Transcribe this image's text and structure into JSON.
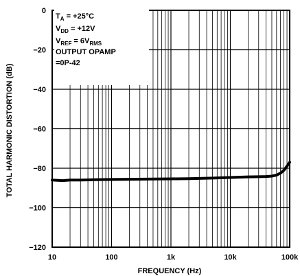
{
  "chart_data": {
    "type": "line",
    "xlabel": "FREQUENCY (Hz)",
    "ylabel": "TOTAL HARMONIC DISTORTION (dB)",
    "xscale": "log",
    "xlim": [
      10,
      100000
    ],
    "ylim": [
      -120,
      0
    ],
    "grid": true,
    "xticks": [
      {
        "value": 10,
        "label": "10"
      },
      {
        "value": 100,
        "label": "100"
      },
      {
        "value": 1000,
        "label": "1k"
      },
      {
        "value": 10000,
        "label": "10k"
      },
      {
        "value": 100000,
        "label": "100k"
      }
    ],
    "yticks": [
      {
        "value": 0,
        "label": "0"
      },
      {
        "value": -20,
        "label": "−20"
      },
      {
        "value": -40,
        "label": "−40"
      },
      {
        "value": -60,
        "label": "−60"
      },
      {
        "value": -80,
        "label": "−80"
      },
      {
        "value": -100,
        "label": "−100"
      },
      {
        "value": -120,
        "label": "−120"
      }
    ],
    "annotations": {
      "ta": {
        "main": "T",
        "sub": "A",
        "rest": " = +25°C"
      },
      "vdd": {
        "main": "V",
        "sub": "DD",
        "rest": " = +12V"
      },
      "vref": {
        "main": "V",
        "sub": "REF",
        "mid": " = 6V",
        "sub2": "RMS"
      },
      "line4": "OUTPUT OPAMP",
      "line5": "=0P-42"
    },
    "series": [
      {
        "x": [
          10,
          15,
          20,
          30,
          50,
          100,
          200,
          500,
          1000,
          2000,
          5000,
          10000,
          20000,
          30000,
          40000,
          50000,
          60000,
          70000,
          80000,
          90000,
          100000
        ],
        "y": [
          -86,
          -86.3,
          -86,
          -86,
          -85.8,
          -85.7,
          -85.6,
          -85.5,
          -85.4,
          -85.3,
          -85,
          -84.7,
          -84.4,
          -84.3,
          -84.2,
          -84,
          -83.5,
          -82.5,
          -81,
          -79,
          -77
        ]
      }
    ]
  }
}
